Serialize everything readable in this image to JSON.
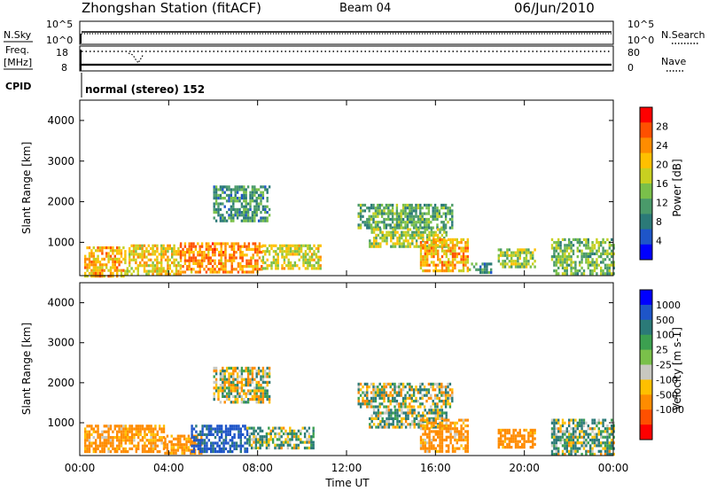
{
  "header": {
    "station_title": "Zhongshan Station (fitACF)",
    "beam": "Beam 04",
    "date": "06/Jun/2010"
  },
  "top_panels": {
    "nsky_label": "N.Sky",
    "nsearch_label": "N.Search",
    "noise_ticks_left": [
      "10^5",
      "10^0"
    ],
    "noise_ticks_right": [
      "10^5",
      "10^0"
    ],
    "freq_label": "Freq.",
    "freq_unit": "[MHz]",
    "freq_ticks": [
      "18",
      "8"
    ],
    "nave_label": "Nave",
    "nave_ticks": [
      "80",
      "0"
    ],
    "cpid_label": "CPID",
    "cpid_text": "normal (stereo) 152"
  },
  "colors": {
    "power_scale": [
      "#0000ff",
      "#1e55c8",
      "#2b7a78",
      "#4a9a6a",
      "#7ac04a",
      "#c8d020",
      "#ffc000",
      "#ff8c00",
      "#ff5000",
      "#ff0000"
    ],
    "velocity_scale": [
      "#0000ff",
      "#1e55c8",
      "#2b7a78",
      "#3ca050",
      "#7ac04a",
      "#c8c8c0",
      "#ffc000",
      "#ff8c00",
      "#ff5000",
      "#ff0000"
    ]
  },
  "chart_data": [
    {
      "type": "heatmap",
      "name": "power",
      "ylabel": "Slant Range [km]",
      "xlabel": "",
      "colorbar_label": "Power [dB]",
      "colorbar_ticks": [
        "4",
        "8",
        "12",
        "16",
        "20",
        "24",
        "28"
      ],
      "ylim": [
        180,
        4500
      ],
      "y_ticks": [
        "1000",
        "2000",
        "3000",
        "4000"
      ],
      "x_ticks": [
        "00:00",
        "04:00",
        "08:00",
        "12:00",
        "16:00",
        "20:00",
        "00:00"
      ],
      "regions": [
        {
          "t": [
            0.2,
            2.0
          ],
          "r": [
            200,
            900
          ],
          "v": 22
        },
        {
          "t": [
            2.0,
            4.5
          ],
          "r": [
            250,
            950
          ],
          "v": 20
        },
        {
          "t": [
            4.5,
            8.2
          ],
          "r": [
            300,
            1000
          ],
          "v": 24
        },
        {
          "t": [
            8.2,
            10.8
          ],
          "r": [
            350,
            950
          ],
          "v": 18
        },
        {
          "t": [
            12.5,
            16.8
          ],
          "r": [
            1350,
            1950
          ],
          "v": 12
        },
        {
          "t": [
            13.0,
            16.5
          ],
          "r": [
            900,
            1350
          ],
          "v": 16
        },
        {
          "t": [
            15.3,
            17.5
          ],
          "r": [
            300,
            1100
          ],
          "v": 22
        },
        {
          "t": [
            6.0,
            8.5
          ],
          "r": [
            1500,
            2400
          ],
          "v": 10
        },
        {
          "t": [
            17.5,
            18.5
          ],
          "r": [
            250,
            500
          ],
          "v": 10
        },
        {
          "t": [
            18.8,
            20.5
          ],
          "r": [
            400,
            850
          ],
          "v": 16
        },
        {
          "t": [
            21.2,
            24.0
          ],
          "r": [
            200,
            1100
          ],
          "v": 14
        }
      ]
    },
    {
      "type": "heatmap",
      "name": "velocity",
      "ylabel": "Slant Range [km]",
      "xlabel": "Time UT",
      "colorbar_label": "Velocity [m s-1]",
      "colorbar_ticks": [
        "1000",
        "500",
        "100",
        "25",
        "-25",
        "-100",
        "-500",
        "-1000"
      ],
      "ylim": [
        180,
        4500
      ],
      "y_ticks": [
        "1000",
        "2000",
        "3000",
        "4000"
      ],
      "x_ticks": [
        "00:00",
        "04:00",
        "08:00",
        "12:00",
        "16:00",
        "20:00",
        "00:00"
      ],
      "regions": [
        {
          "t": [
            0.2,
            3.8
          ],
          "r": [
            250,
            950
          ],
          "v": -200
        },
        {
          "t": [
            3.8,
            5.5
          ],
          "r": [
            250,
            700
          ],
          "v": -250
        },
        {
          "t": [
            5.0,
            7.5
          ],
          "r": [
            300,
            950
          ],
          "v": 600
        },
        {
          "t": [
            7.5,
            10.5
          ],
          "r": [
            350,
            900
          ],
          "v": 80
        },
        {
          "t": [
            6.0,
            8.5
          ],
          "r": [
            1500,
            2400
          ],
          "v": 0
        },
        {
          "t": [
            12.5,
            16.8
          ],
          "r": [
            1400,
            2000
          ],
          "v": 0
        },
        {
          "t": [
            13.0,
            16.5
          ],
          "r": [
            900,
            1350
          ],
          "v": 50
        },
        {
          "t": [
            15.3,
            17.5
          ],
          "r": [
            300,
            1100
          ],
          "v": -200
        },
        {
          "t": [
            18.8,
            20.5
          ],
          "r": [
            400,
            850
          ],
          "v": -250
        },
        {
          "t": [
            21.2,
            24.0
          ],
          "r": [
            200,
            1100
          ],
          "v": 80
        }
      ]
    }
  ]
}
